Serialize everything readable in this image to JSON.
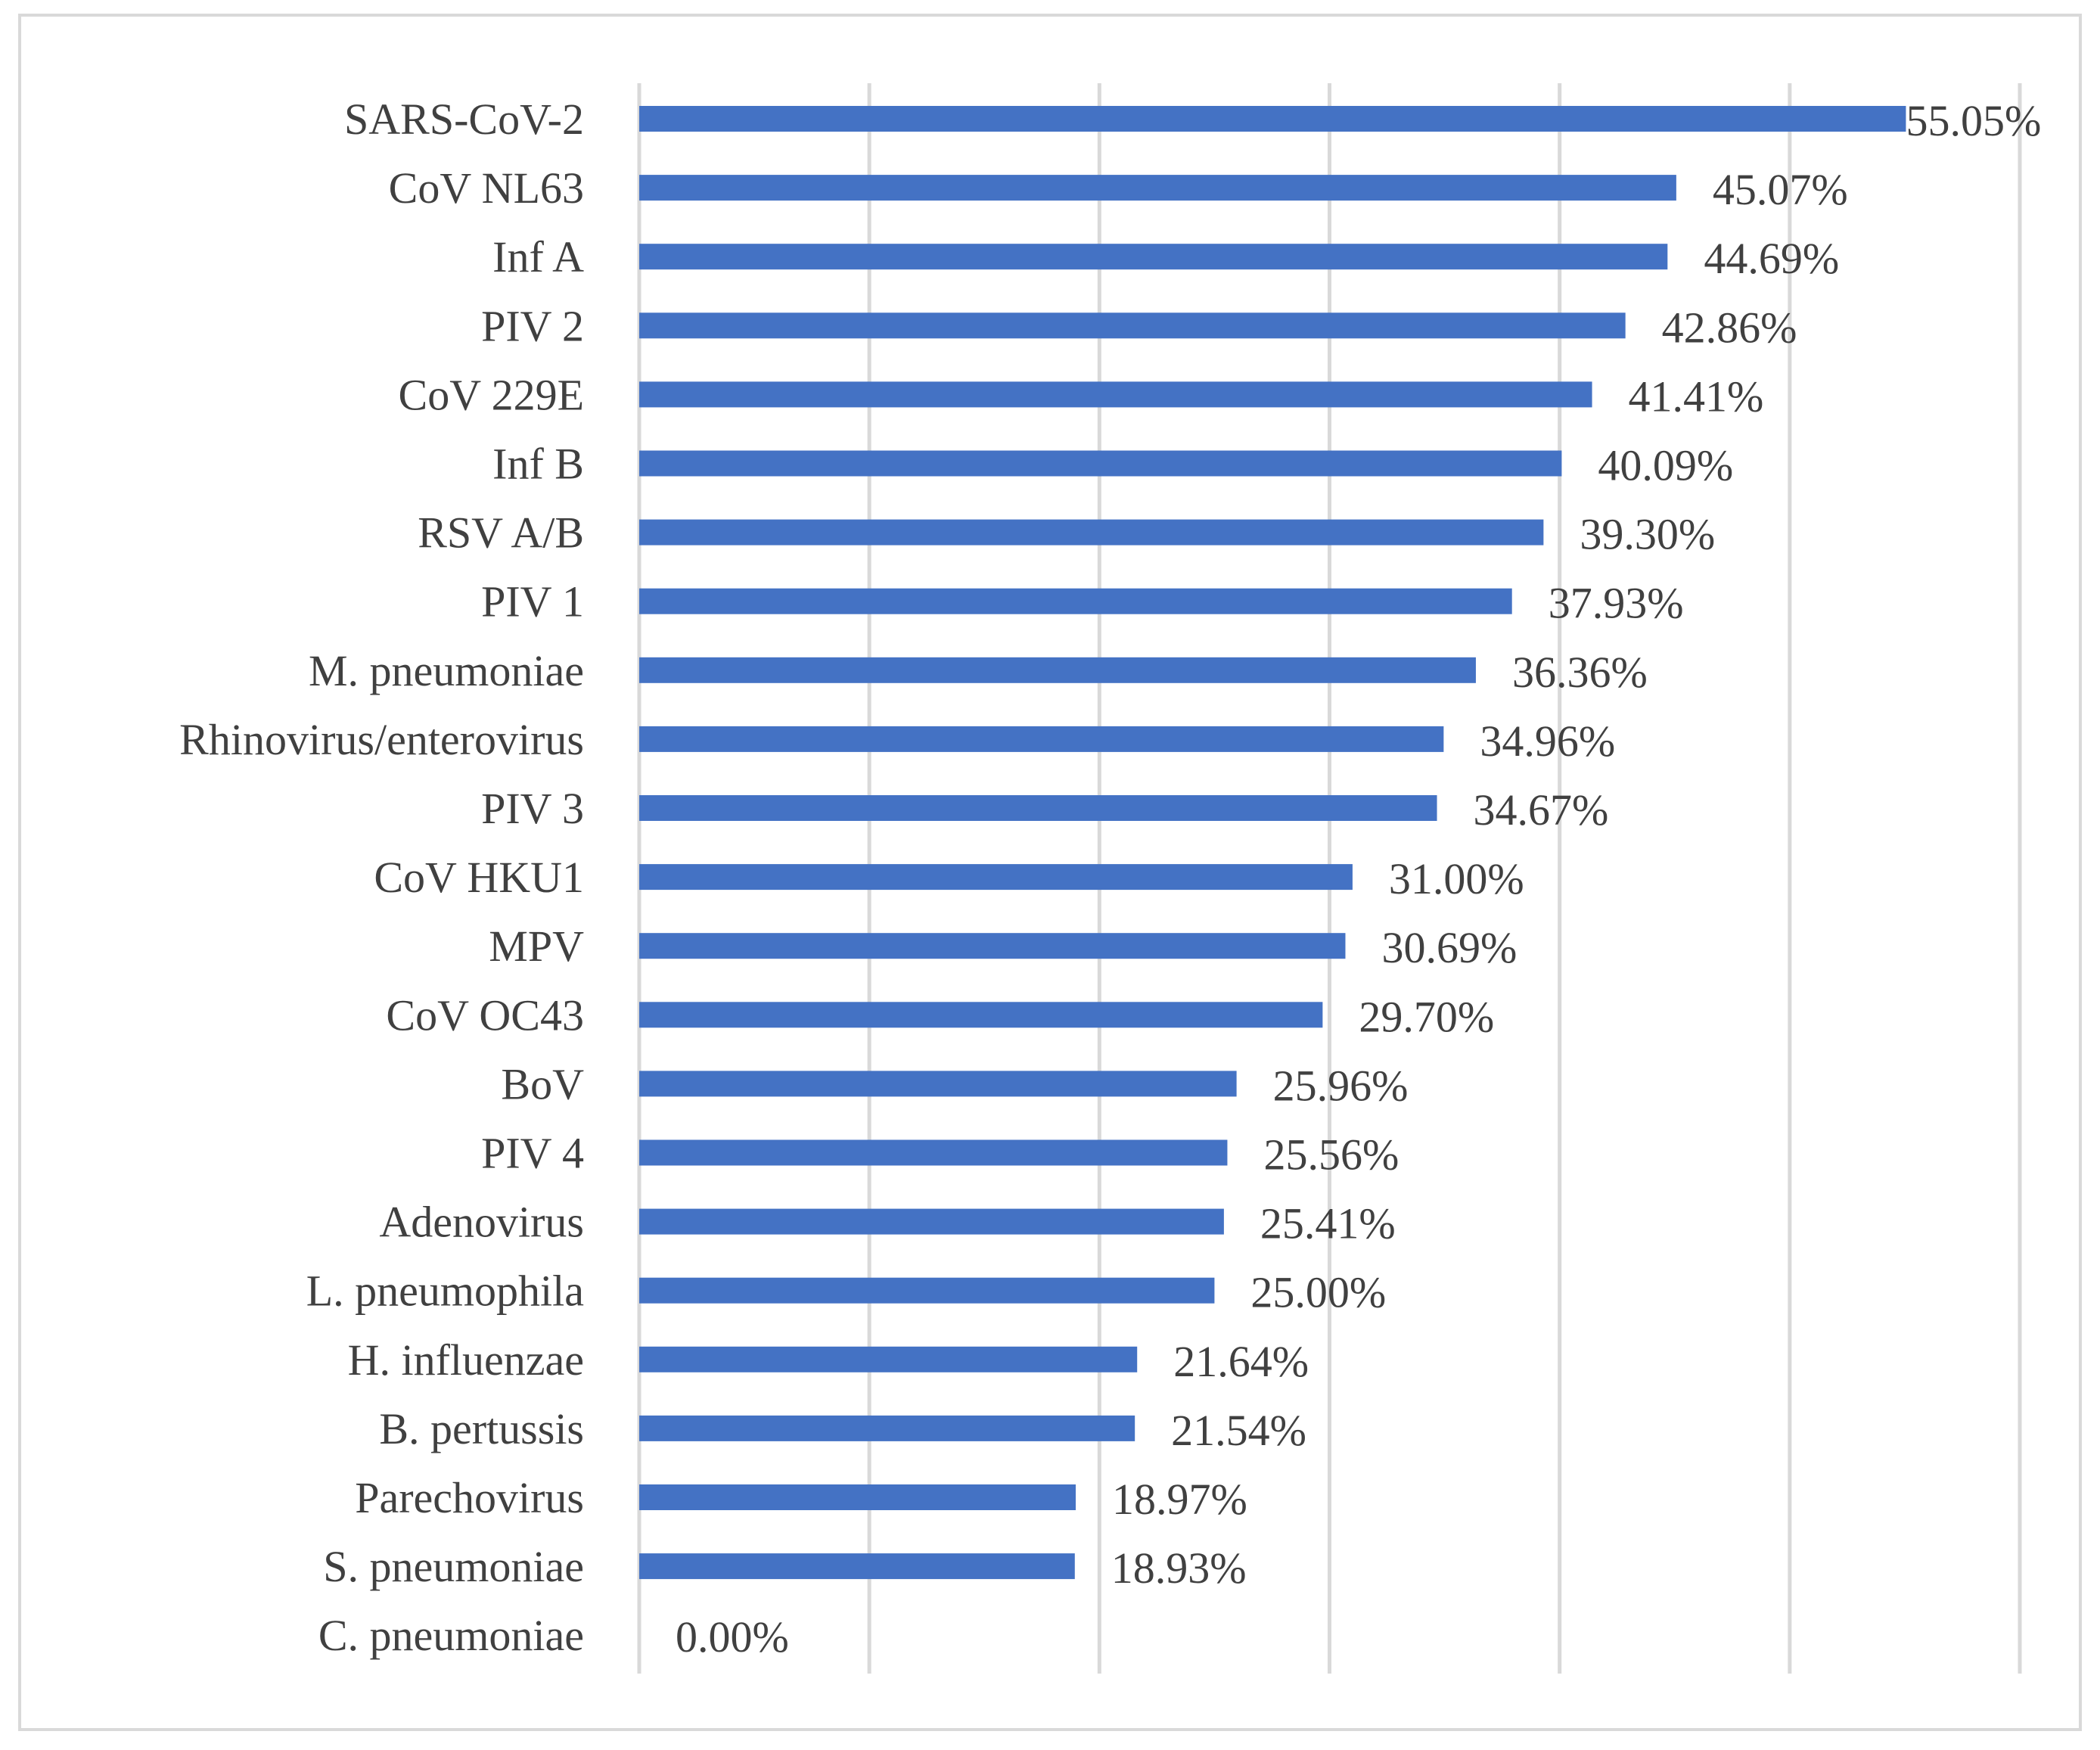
{
  "chart_data": {
    "type": "bar",
    "orientation": "horizontal",
    "categories": [
      "SARS-CoV-2",
      "CoV NL63",
      "Inf A",
      "PIV 2",
      "CoV 229E",
      "Inf B",
      "RSV A/B",
      "PIV 1",
      "M. pneumoniae",
      "Rhinovirus/enterovirus",
      "PIV 3",
      "CoV HKU1",
      "MPV",
      "CoV OC43",
      "BoV",
      "PIV 4",
      "Adenovirus",
      "L. pneumophila",
      "H. influenzae",
      "B. pertussis",
      "Parechovirus",
      "S. pneumoniae",
      "C. pneumoniae"
    ],
    "values": [
      55.05,
      45.07,
      44.69,
      42.86,
      41.41,
      40.09,
      39.3,
      37.93,
      36.36,
      34.96,
      34.67,
      31.0,
      30.69,
      29.7,
      25.96,
      25.56,
      25.41,
      25.0,
      21.64,
      21.54,
      18.97,
      18.93,
      0.0
    ],
    "data_labels": [
      "55.05%",
      "45.07%",
      "44.69%",
      "42.86%",
      "41.41%",
      "40.09%",
      "39.30%",
      "37.93%",
      "36.36%",
      "34.96%",
      "34.67%",
      "31.00%",
      "30.69%",
      "29.70%",
      "25.96%",
      "25.56%",
      "25.41%",
      "25.00%",
      "21.64%",
      "21.54%",
      "18.97%",
      "18.93%",
      "0.00%"
    ],
    "xlim": [
      0,
      60
    ],
    "x_gridlines": [
      0,
      10,
      20,
      30,
      40,
      50,
      60
    ],
    "axis_tick_labels_shown": false,
    "grid": true,
    "legend": "none",
    "bar_color": "#4472c4",
    "grid_color": "#d9d9d9",
    "text_color": "#404040"
  }
}
